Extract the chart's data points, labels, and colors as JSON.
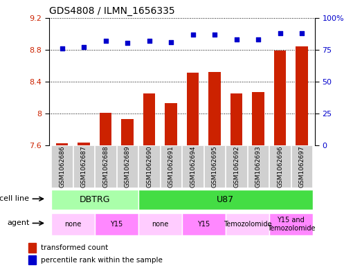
{
  "title": "GDS4808 / ILMN_1656335",
  "samples": [
    "GSM1062686",
    "GSM1062687",
    "GSM1062688",
    "GSM1062689",
    "GSM1062690",
    "GSM1062691",
    "GSM1062694",
    "GSM1062695",
    "GSM1062692",
    "GSM1062693",
    "GSM1062696",
    "GSM1062697"
  ],
  "bar_values": [
    7.63,
    7.64,
    8.01,
    7.93,
    8.25,
    8.13,
    8.51,
    8.52,
    8.25,
    8.27,
    8.79,
    8.84
  ],
  "dot_values": [
    76,
    77,
    82,
    80,
    82,
    81,
    87,
    87,
    83,
    83,
    88,
    88
  ],
  "ylim_left": [
    7.6,
    9.2
  ],
  "ylim_right": [
    0,
    100
  ],
  "yticks_left": [
    7.6,
    8.0,
    8.4,
    8.8,
    9.2
  ],
  "yticks_right": [
    0,
    25,
    50,
    75,
    100
  ],
  "ytick_labels_left": [
    "7.6",
    "8",
    "8.4",
    "8.8",
    "9.2"
  ],
  "ytick_labels_right": [
    "0",
    "25",
    "50",
    "75",
    "100%"
  ],
  "bar_color": "#cc2200",
  "dot_color": "#0000cc",
  "bar_bottom": 7.6,
  "cell_line_data": [
    {
      "label": "DBTRG",
      "start": 0,
      "end": 3,
      "color": "#aaffaa"
    },
    {
      "label": "U87",
      "start": 4,
      "end": 11,
      "color": "#44dd44"
    }
  ],
  "agent_data": [
    {
      "label": "none",
      "start": 0,
      "end": 1,
      "color": "#ffccff"
    },
    {
      "label": "Y15",
      "start": 2,
      "end": 3,
      "color": "#ff88ff"
    },
    {
      "label": "none",
      "start": 4,
      "end": 5,
      "color": "#ffccff"
    },
    {
      "label": "Y15",
      "start": 6,
      "end": 7,
      "color": "#ff88ff"
    },
    {
      "label": "Temozolomide",
      "start": 8,
      "end": 9,
      "color": "#ffccff"
    },
    {
      "label": "Y15 and\nTemozolomide",
      "start": 10,
      "end": 11,
      "color": "#ff88ff"
    }
  ],
  "label_row_color": "#d0d0d0",
  "legend_items": [
    {
      "label": "transformed count",
      "color": "#cc2200"
    },
    {
      "label": "percentile rank within the sample",
      "color": "#0000cc"
    }
  ],
  "grid_linestyle": ":",
  "grid_color": "#000000",
  "plot_bg": "white"
}
